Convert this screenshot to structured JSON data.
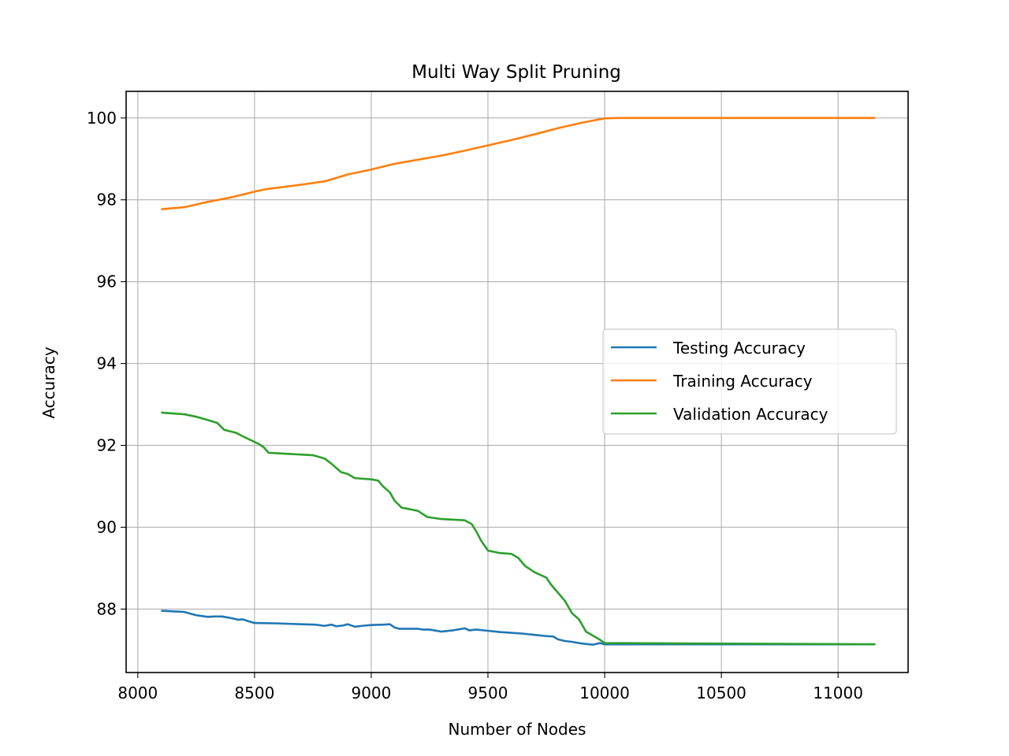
{
  "chart_data": {
    "type": "line",
    "title": "Multi Way Split Pruning",
    "xlabel": "Number of Nodes",
    "ylabel": "Accuracy",
    "xlim": [
      7950,
      11300
    ],
    "ylim": [
      86.45,
      100.65
    ],
    "xticks": [
      8000,
      8500,
      9000,
      9500,
      10000,
      10500,
      11000
    ],
    "yticks": [
      88,
      90,
      92,
      94,
      96,
      98,
      100
    ],
    "grid": true,
    "legend": {
      "position": "center-right"
    },
    "series": [
      {
        "name": "Testing Accuracy",
        "color": "#1f77b4",
        "points": [
          [
            8100,
            87.96
          ],
          [
            8200,
            87.93
          ],
          [
            8250,
            87.85
          ],
          [
            8300,
            87.81
          ],
          [
            8330,
            87.82
          ],
          [
            8360,
            87.82
          ],
          [
            8400,
            87.78
          ],
          [
            8430,
            87.74
          ],
          [
            8450,
            87.75
          ],
          [
            8470,
            87.71
          ],
          [
            8500,
            87.66
          ],
          [
            8600,
            87.65
          ],
          [
            8700,
            87.63
          ],
          [
            8760,
            87.62
          ],
          [
            8800,
            87.59
          ],
          [
            8830,
            87.62
          ],
          [
            8850,
            87.58
          ],
          [
            8880,
            87.6
          ],
          [
            8900,
            87.63
          ],
          [
            8930,
            87.57
          ],
          [
            8960,
            87.59
          ],
          [
            9000,
            87.61
          ],
          [
            9050,
            87.62
          ],
          [
            9080,
            87.63
          ],
          [
            9100,
            87.55
          ],
          [
            9120,
            87.52
          ],
          [
            9200,
            87.52
          ],
          [
            9220,
            87.5
          ],
          [
            9250,
            87.5
          ],
          [
            9300,
            87.45
          ],
          [
            9350,
            87.48
          ],
          [
            9400,
            87.53
          ],
          [
            9420,
            87.48
          ],
          [
            9450,
            87.5
          ],
          [
            9500,
            87.47
          ],
          [
            9550,
            87.44
          ],
          [
            9600,
            87.42
          ],
          [
            9650,
            87.4
          ],
          [
            9700,
            87.37
          ],
          [
            9750,
            87.34
          ],
          [
            9780,
            87.33
          ],
          [
            9800,
            87.26
          ],
          [
            9830,
            87.22
          ],
          [
            9860,
            87.2
          ],
          [
            9900,
            87.16
          ],
          [
            9950,
            87.13
          ],
          [
            9980,
            87.17
          ],
          [
            10000,
            87.14
          ],
          [
            11160,
            87.14
          ]
        ]
      },
      {
        "name": "Training Accuracy",
        "color": "#ff7f0e",
        "points": [
          [
            8100,
            97.77
          ],
          [
            8200,
            97.82
          ],
          [
            8300,
            97.95
          ],
          [
            8400,
            98.06
          ],
          [
            8500,
            98.2
          ],
          [
            8550,
            98.26
          ],
          [
            8700,
            98.37
          ],
          [
            8800,
            98.45
          ],
          [
            8900,
            98.62
          ],
          [
            9000,
            98.74
          ],
          [
            9100,
            98.88
          ],
          [
            9200,
            98.98
          ],
          [
            9300,
            99.08
          ],
          [
            9400,
            99.2
          ],
          [
            9500,
            99.33
          ],
          [
            9600,
            99.46
          ],
          [
            9700,
            99.6
          ],
          [
            9800,
            99.75
          ],
          [
            9900,
            99.88
          ],
          [
            10000,
            99.99
          ],
          [
            10050,
            100.0
          ],
          [
            11160,
            100.0
          ]
        ]
      },
      {
        "name": "Validation Accuracy",
        "color": "#2ca02c",
        "points": [
          [
            8100,
            92.8
          ],
          [
            8200,
            92.76
          ],
          [
            8250,
            92.7
          ],
          [
            8300,
            92.62
          ],
          [
            8340,
            92.55
          ],
          [
            8370,
            92.38
          ],
          [
            8420,
            92.31
          ],
          [
            8450,
            92.22
          ],
          [
            8480,
            92.14
          ],
          [
            8520,
            92.03
          ],
          [
            8540,
            91.95
          ],
          [
            8560,
            91.82
          ],
          [
            8650,
            91.79
          ],
          [
            8750,
            91.76
          ],
          [
            8800,
            91.68
          ],
          [
            8830,
            91.55
          ],
          [
            8870,
            91.35
          ],
          [
            8900,
            91.3
          ],
          [
            8930,
            91.2
          ],
          [
            9000,
            91.17
          ],
          [
            9030,
            91.14
          ],
          [
            9050,
            91.0
          ],
          [
            9080,
            90.85
          ],
          [
            9100,
            90.65
          ],
          [
            9130,
            90.48
          ],
          [
            9200,
            90.4
          ],
          [
            9240,
            90.25
          ],
          [
            9300,
            90.2
          ],
          [
            9400,
            90.17
          ],
          [
            9430,
            90.08
          ],
          [
            9450,
            89.9
          ],
          [
            9470,
            89.68
          ],
          [
            9500,
            89.43
          ],
          [
            9550,
            89.37
          ],
          [
            9600,
            89.35
          ],
          [
            9630,
            89.25
          ],
          [
            9660,
            89.05
          ],
          [
            9700,
            88.9
          ],
          [
            9750,
            88.77
          ],
          [
            9770,
            88.6
          ],
          [
            9800,
            88.4
          ],
          [
            9830,
            88.2
          ],
          [
            9860,
            87.9
          ],
          [
            9890,
            87.75
          ],
          [
            9920,
            87.45
          ],
          [
            9950,
            87.35
          ],
          [
            9980,
            87.25
          ],
          [
            10000,
            87.17
          ],
          [
            11160,
            87.14
          ]
        ]
      }
    ]
  }
}
